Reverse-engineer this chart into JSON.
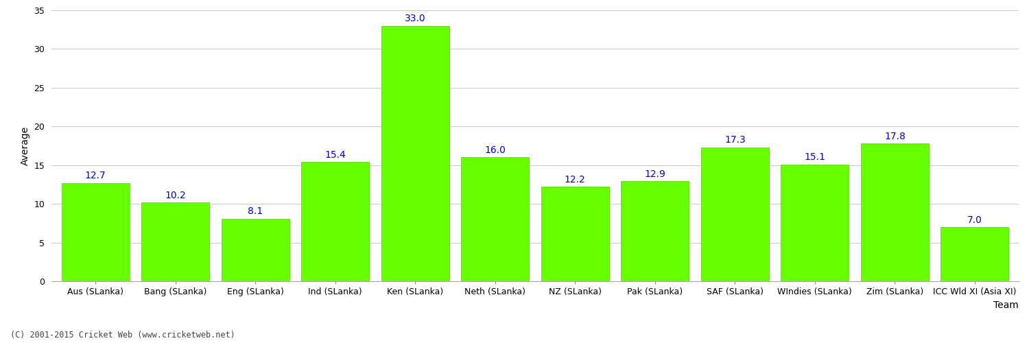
{
  "categories": [
    "Aus (SLanka)",
    "Bang (SLanka)",
    "Eng (SLanka)",
    "Ind (SLanka)",
    "Ken (SLanka)",
    "Neth (SLanka)",
    "NZ (SLanka)",
    "Pak (SLanka)",
    "SAF (SLanka)",
    "WIndies (SLanka)",
    "Zim (SLanka)",
    "ICC Wld XI (Asia XI)"
  ],
  "values": [
    12.7,
    10.2,
    8.1,
    15.4,
    33.0,
    16.0,
    12.2,
    12.9,
    17.3,
    15.1,
    17.8,
    7.0
  ],
  "bar_color": "#66ff00",
  "bar_edge_color": "#55cc00",
  "title": "",
  "xlabel": "Team",
  "ylabel": "Average",
  "ylim": [
    0,
    35
  ],
  "yticks": [
    0,
    5,
    10,
    15,
    20,
    25,
    30,
    35
  ],
  "label_color": "#0000cc",
  "label_fontsize": 10,
  "xlabel_fontsize": 10,
  "ylabel_fontsize": 10,
  "tick_fontsize": 9,
  "background_color": "#ffffff",
  "grid_color": "#cccccc",
  "footer_text": "(C) 2001-2015 Cricket Web (www.cricketweb.net)"
}
